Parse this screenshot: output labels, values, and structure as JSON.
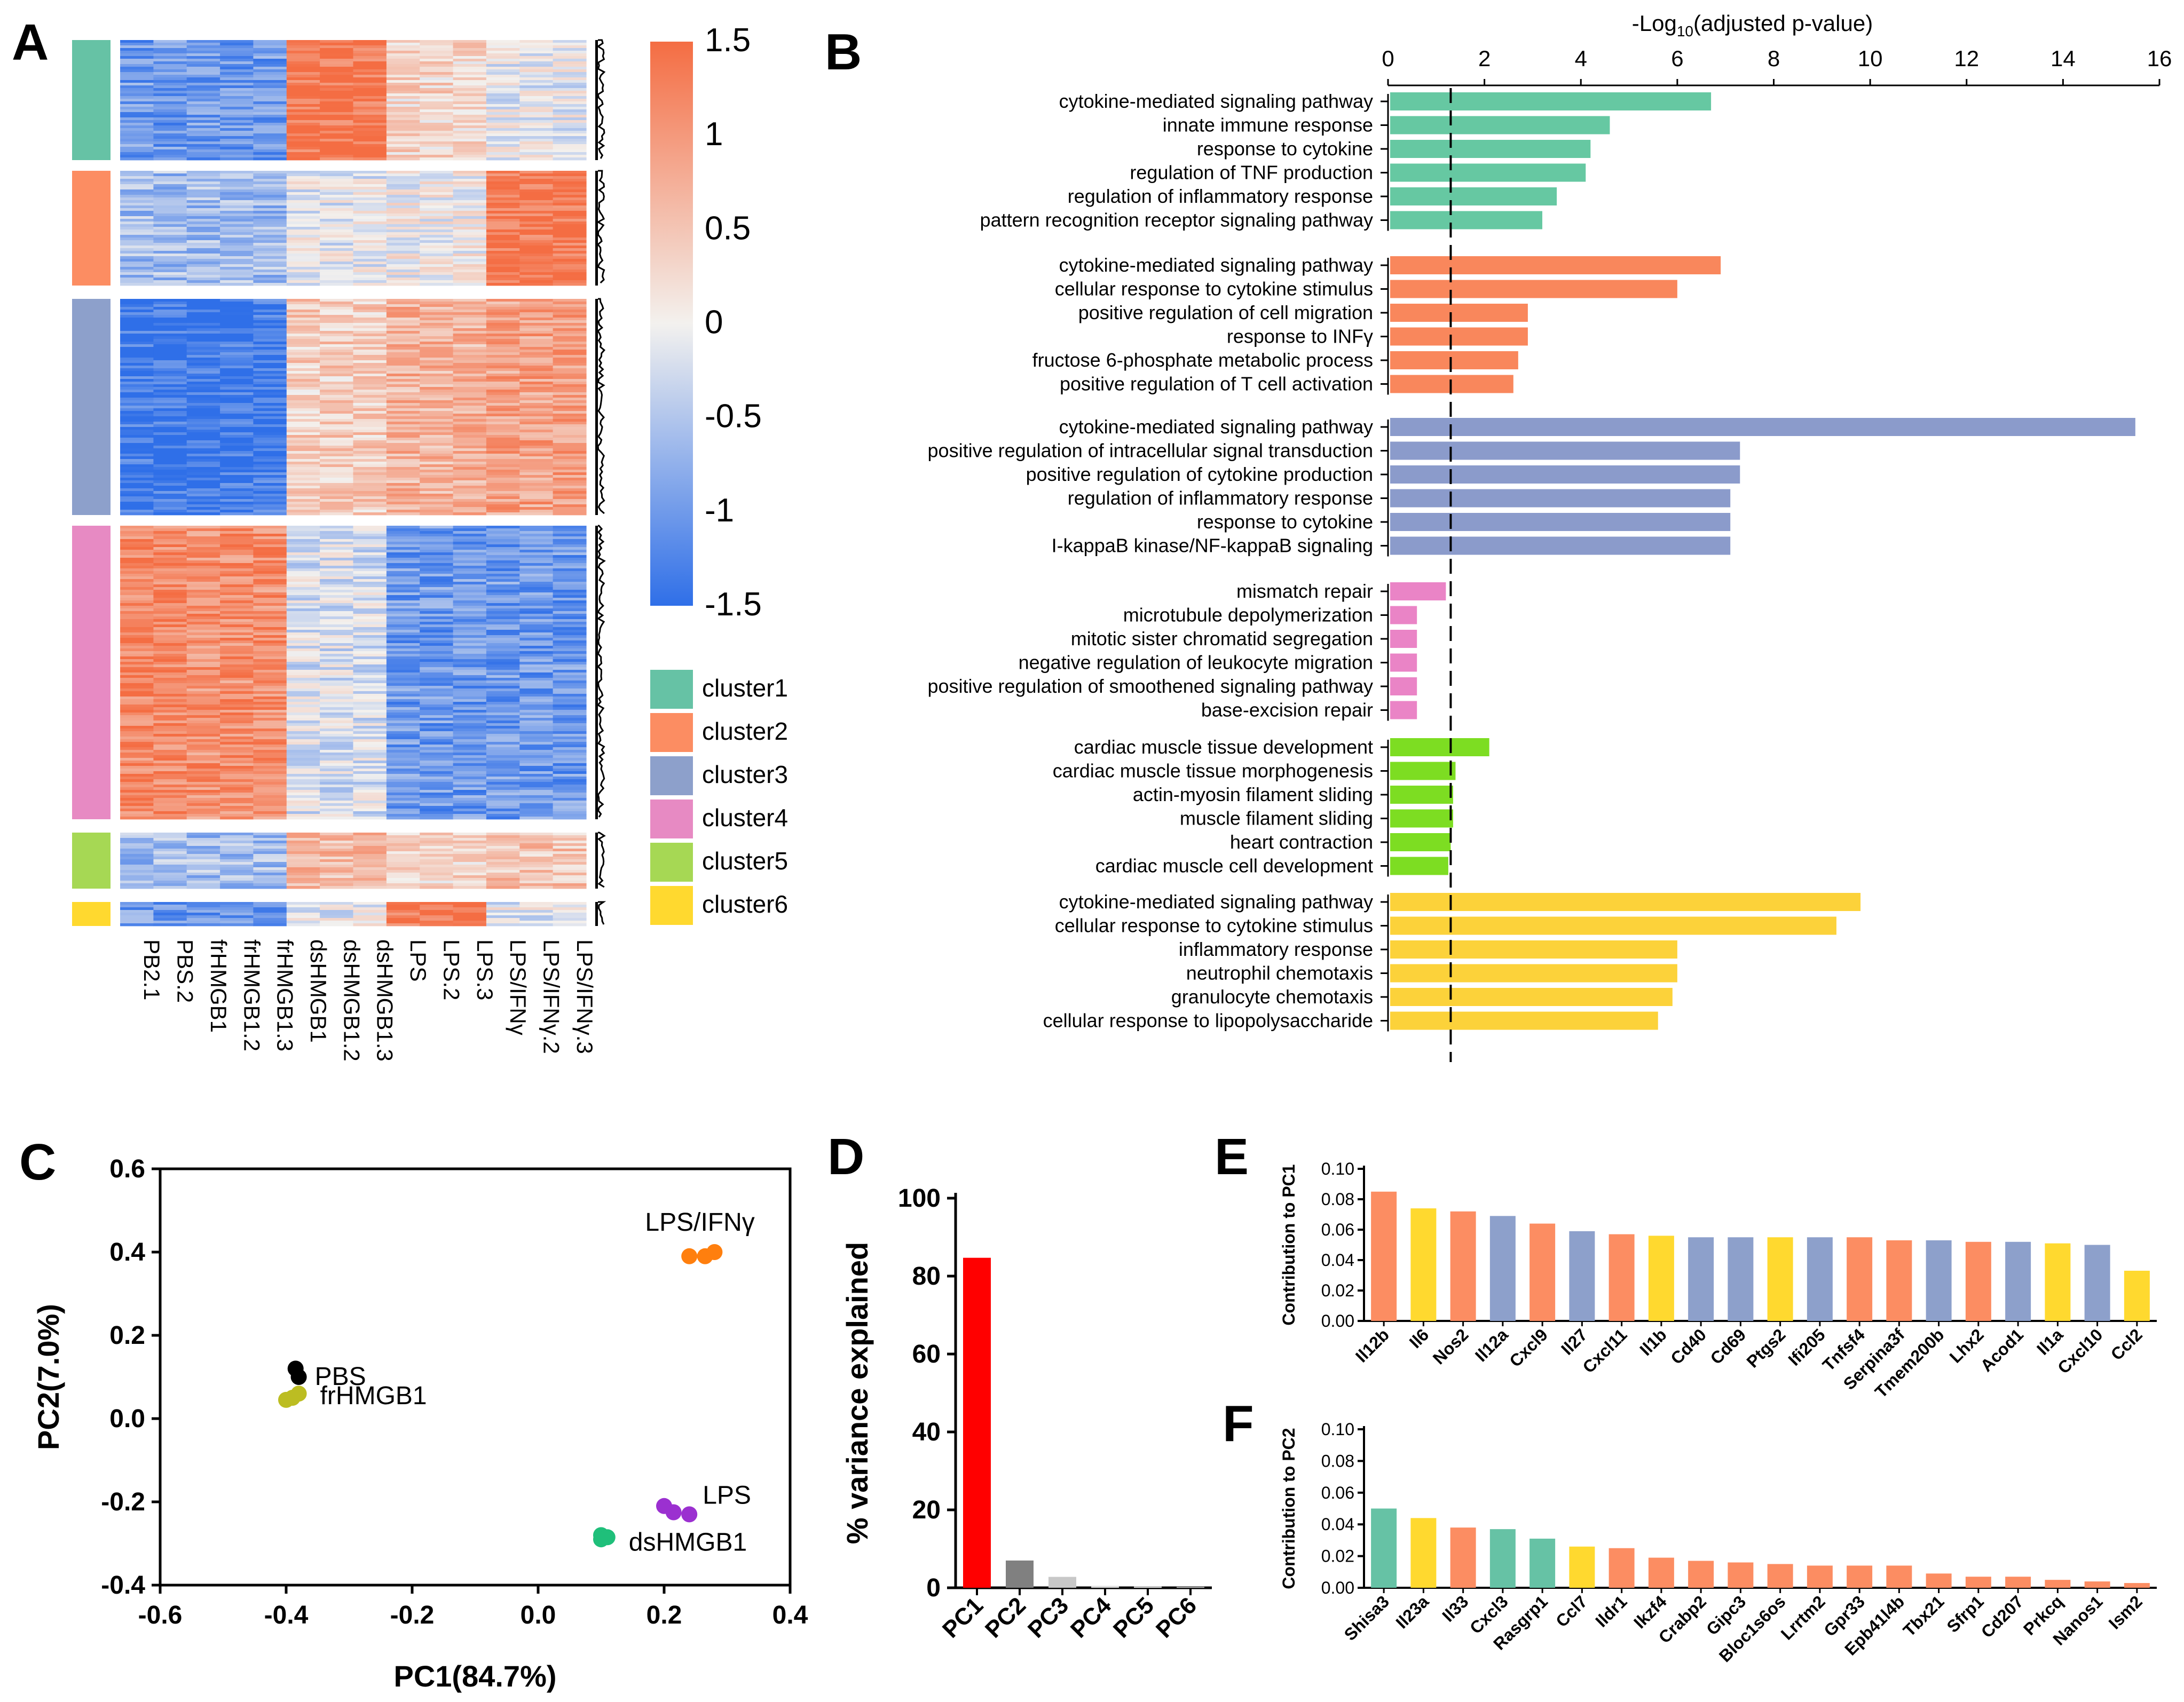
{
  "panels": {
    "A": "A",
    "B": "B",
    "C": "C",
    "D": "D",
    "E": "E",
    "F": "F"
  },
  "colors": {
    "cluster1": "#66c2a5",
    "cluster2": "#fc8d62",
    "cluster3": "#8da0cb",
    "cluster4": "#e78ac3",
    "cluster5": "#a6d854",
    "cluster6": "#ffd92f",
    "heat_low": "#2f6fe8",
    "heat_mid": "#f3f1ee",
    "heat_high": "#f46d43",
    "b_c1": "#66c8a2",
    "b_c2": "#f9875c",
    "b_c3": "#8b9bcb",
    "b_c4": "#ea84c6",
    "b_c5": "#7ddd22",
    "b_c6": "#fcd23a"
  },
  "chart_data": [
    {
      "id": "A",
      "type": "heatmap",
      "title": "",
      "samples": [
        "PB2.1",
        "PBS.2",
        "frHMGB1",
        "frHMGB1.2",
        "frHMGB1.3",
        "dsHMGB1",
        "dsHMGB1.2",
        "dsHMGB1.3",
        "LPS",
        "LPS.2",
        "LPS.3",
        "LPS/IFNγ",
        "LPS/IFNγ.2",
        "LPS/IFNγ.3"
      ],
      "colorbar": {
        "ticks": [
          "1.5",
          "1",
          "0.5",
          "0",
          "-0.5",
          "-1",
          "-1.5"
        ],
        "range": [
          -1.5,
          1.5
        ]
      },
      "legend": [
        "cluster1",
        "cluster2",
        "cluster3",
        "cluster4",
        "cluster5",
        "cluster6"
      ],
      "cluster_profiles": [
        [
          -1.0,
          -1.0,
          -1.0,
          -1.0,
          -1.0,
          1.4,
          1.4,
          1.4,
          0.3,
          0.3,
          0.3,
          -0.1,
          -0.1,
          -0.1
        ],
        [
          -0.6,
          -0.6,
          -0.6,
          -0.6,
          -0.6,
          -0.1,
          -0.1,
          -0.1,
          0.0,
          0.0,
          0.0,
          1.4,
          1.4,
          1.4
        ],
        [
          -1.4,
          -1.4,
          -1.4,
          -1.4,
          -1.4,
          0.4,
          0.4,
          0.4,
          0.7,
          0.7,
          0.7,
          0.9,
          0.9,
          0.9
        ],
        [
          1.2,
          1.2,
          1.1,
          1.1,
          1.1,
          -0.2,
          -0.2,
          -0.2,
          -1.0,
          -1.0,
          -1.0,
          -1.0,
          -1.0,
          -1.0
        ],
        [
          -0.6,
          -0.6,
          -0.6,
          -0.6,
          -0.6,
          0.6,
          0.6,
          0.6,
          0.3,
          0.3,
          0.3,
          0.5,
          0.5,
          0.5
        ],
        [
          -1.0,
          -1.0,
          -1.0,
          -1.0,
          -1.0,
          -0.1,
          -0.1,
          -0.1,
          1.4,
          1.4,
          1.4,
          -0.1,
          -0.1,
          -0.1
        ]
      ]
    },
    {
      "id": "B",
      "type": "bar",
      "orientation": "horizontal",
      "xlabel_prefix": "-Log",
      "xlabel_sub": "10",
      "xlabel_suffix": "(adjusted p-value)",
      "xlim": [
        0,
        16
      ],
      "xticks": [
        "0",
        "2",
        "4",
        "6",
        "8",
        "10",
        "12",
        "14",
        "16"
      ],
      "threshold": 1.3,
      "groups": [
        {
          "name": "cluster1",
          "terms": [
            {
              "label": "cytokine-mediated signaling pathway",
              "value": 6.7
            },
            {
              "label": "innate immune response",
              "value": 4.6
            },
            {
              "label": "response to cytokine",
              "value": 4.2
            },
            {
              "label": "regulation of TNF production",
              "value": 4.1
            },
            {
              "label": "regulation of inflammatory response",
              "value": 3.5
            },
            {
              "label": "pattern recognition receptor signaling pathway",
              "value": 3.2
            }
          ]
        },
        {
          "name": "cluster2",
          "terms": [
            {
              "label": "cytokine-mediated signaling pathway",
              "value": 6.9
            },
            {
              "label": "cellular response to cytokine stimulus",
              "value": 6.0
            },
            {
              "label": "positive regulation of cell migration",
              "value": 2.9
            },
            {
              "label": "response to INFγ",
              "value": 2.9
            },
            {
              "label": "fructose 6-phosphate metabolic process",
              "value": 2.7
            },
            {
              "label": "positive regulation of T cell activation",
              "value": 2.6
            }
          ]
        },
        {
          "name": "cluster3",
          "terms": [
            {
              "label": "cytokine-mediated signaling pathway",
              "value": 15.5
            },
            {
              "label": "positive regulation of intracellular signal transduction",
              "value": 7.3
            },
            {
              "label": "positive regulation of cytokine production",
              "value": 7.3
            },
            {
              "label": "regulation of inflammatory response",
              "value": 7.1
            },
            {
              "label": "response to cytokine",
              "value": 7.1
            },
            {
              "label": "I-kappaB kinase/NF-kappaB signaling",
              "value": 7.1
            }
          ]
        },
        {
          "name": "cluster4",
          "terms": [
            {
              "label": "mismatch repair",
              "value": 1.2
            },
            {
              "label": "microtubule depolymerization",
              "value": 0.6
            },
            {
              "label": "mitotic sister chromatid segregation",
              "value": 0.6
            },
            {
              "label": "negative regulation of leukocyte migration",
              "value": 0.6
            },
            {
              "label": "positive regulation of smoothened signaling pathway",
              "value": 0.6
            },
            {
              "label": "base-excision repair",
              "value": 0.6
            }
          ]
        },
        {
          "name": "cluster5",
          "terms": [
            {
              "label": "cardiac muscle tissue development",
              "value": 2.1
            },
            {
              "label": "cardiac muscle tissue morphogenesis",
              "value": 1.4
            },
            {
              "label": "actin-myosin filament sliding",
              "value": 1.35
            },
            {
              "label": "muscle filament sliding",
              "value": 1.35
            },
            {
              "label": "heart contraction",
              "value": 1.3
            },
            {
              "label": "cardiac muscle cell development",
              "value": 1.25
            }
          ]
        },
        {
          "name": "cluster6",
          "terms": [
            {
              "label": "cytokine-mediated signaling pathway",
              "value": 9.8
            },
            {
              "label": "cellular response to cytokine stimulus",
              "value": 9.3
            },
            {
              "label": "inflammatory response",
              "value": 6.0
            },
            {
              "label": "neutrophil chemotaxis",
              "value": 6.0
            },
            {
              "label": "granulocyte chemotaxis",
              "value": 5.9
            },
            {
              "label": "cellular response to lipopolysaccharide",
              "value": 5.6
            }
          ]
        }
      ]
    },
    {
      "id": "C",
      "type": "scatter",
      "xlabel": "PC1(84.7%)",
      "ylabel": "PC2(7.0%)",
      "xlim": [
        -0.6,
        0.4
      ],
      "ylim": [
        -0.4,
        0.6
      ],
      "xticks": [
        "-0.6",
        "-0.4",
        "-0.2",
        "0.0",
        "0.2",
        "0.4"
      ],
      "yticks": [
        "0.6",
        "0.4",
        "0.2",
        "0.0",
        "-0.2",
        "-0.4"
      ],
      "series": [
        {
          "name": "LPS/IFNγ",
          "color": "#ff7f0e",
          "points": [
            [
              0.24,
              0.39
            ],
            [
              0.265,
              0.39
            ],
            [
              0.28,
              0.4
            ]
          ]
        },
        {
          "name": "PBS",
          "color": "#000000",
          "points": [
            [
              -0.385,
              0.12
            ],
            [
              -0.38,
              0.1
            ]
          ]
        },
        {
          "name": "frHMGB1",
          "color": "#bcbd22",
          "points": [
            [
              -0.4,
              0.045
            ],
            [
              -0.39,
              0.05
            ],
            [
              -0.38,
              0.06
            ]
          ]
        },
        {
          "name": "LPS",
          "color": "#9b30d0",
          "points": [
            [
              0.2,
              -0.21
            ],
            [
              0.215,
              -0.225
            ],
            [
              0.24,
              -0.23
            ]
          ]
        },
        {
          "name": "dsHMGB1",
          "color": "#1fbf7a",
          "points": [
            [
              0.1,
              -0.28
            ],
            [
              0.1,
              -0.29
            ],
            [
              0.11,
              -0.285
            ]
          ]
        }
      ]
    },
    {
      "id": "D",
      "type": "bar",
      "ylabel": "% variance explained",
      "ylim": [
        0,
        100
      ],
      "yticks": [
        "0",
        "20",
        "40",
        "60",
        "80",
        "100"
      ],
      "categories": [
        "PC1",
        "PC2",
        "PC3",
        "PC4",
        "PC5",
        "PC6"
      ],
      "values": [
        84.7,
        7.0,
        2.8,
        0.5,
        0.3,
        0.2
      ],
      "colors": [
        "#ff0000",
        "#808080",
        "#c8c8c8",
        "#dddddd",
        "#dddddd",
        "#dddddd"
      ]
    },
    {
      "id": "E",
      "type": "bar",
      "ylabel": "Contribution to PC1",
      "ylim": [
        0,
        0.1
      ],
      "yticks": [
        "0.10",
        "0.08",
        "0.06",
        "0.04",
        "0.02",
        "0.00"
      ],
      "categories": [
        "Il12b",
        "Il6",
        "Nos2",
        "Il12a",
        "Cxcl9",
        "Il27",
        "Cxcl11",
        "Il1b",
        "Cd40",
        "Cd69",
        "Ptgs2",
        "Ifi205",
        "Tnfsf4",
        "Serpina3f",
        "Tmem200b",
        "Lhx2",
        "Acod1",
        "Il1a",
        "Cxcl10",
        "Ccl2"
      ],
      "values": [
        0.085,
        0.074,
        0.072,
        0.069,
        0.064,
        0.059,
        0.057,
        0.056,
        0.055,
        0.055,
        0.055,
        0.055,
        0.055,
        0.053,
        0.053,
        0.052,
        0.052,
        0.051,
        0.05,
        0.033
      ],
      "bar_clusters": [
        2,
        6,
        2,
        3,
        2,
        3,
        2,
        6,
        3,
        3,
        6,
        3,
        2,
        2,
        3,
        2,
        3,
        6,
        3,
        6
      ]
    },
    {
      "id": "F",
      "type": "bar",
      "ylabel": "Contribution to PC2",
      "ylim": [
        0,
        0.1
      ],
      "yticks": [
        "0.10",
        "0.08",
        "0.06",
        "0.04",
        "0.02",
        "0.00"
      ],
      "categories": [
        "Shisa3",
        "Il23a",
        "Il33",
        "Cxcl3",
        "Rasgrp1",
        "Ccl7",
        "Ildr1",
        "Ikzf4",
        "Crabp2",
        "Gipc3",
        "Bloc1s6os",
        "Lrrtm2",
        "Gpr33",
        "Epb41l4b",
        "Tbx21",
        "Sfrp1",
        "Cd207",
        "Prkcq",
        "Nanos1",
        "Ism2"
      ],
      "values": [
        0.05,
        0.044,
        0.038,
        0.037,
        0.031,
        0.026,
        0.025,
        0.019,
        0.017,
        0.016,
        0.015,
        0.014,
        0.014,
        0.014,
        0.009,
        0.007,
        0.007,
        0.005,
        0.004,
        0.003
      ],
      "bar_clusters": [
        1,
        6,
        2,
        1,
        1,
        6,
        2,
        2,
        2,
        2,
        2,
        2,
        2,
        2,
        2,
        2,
        2,
        2,
        2,
        2
      ]
    }
  ]
}
